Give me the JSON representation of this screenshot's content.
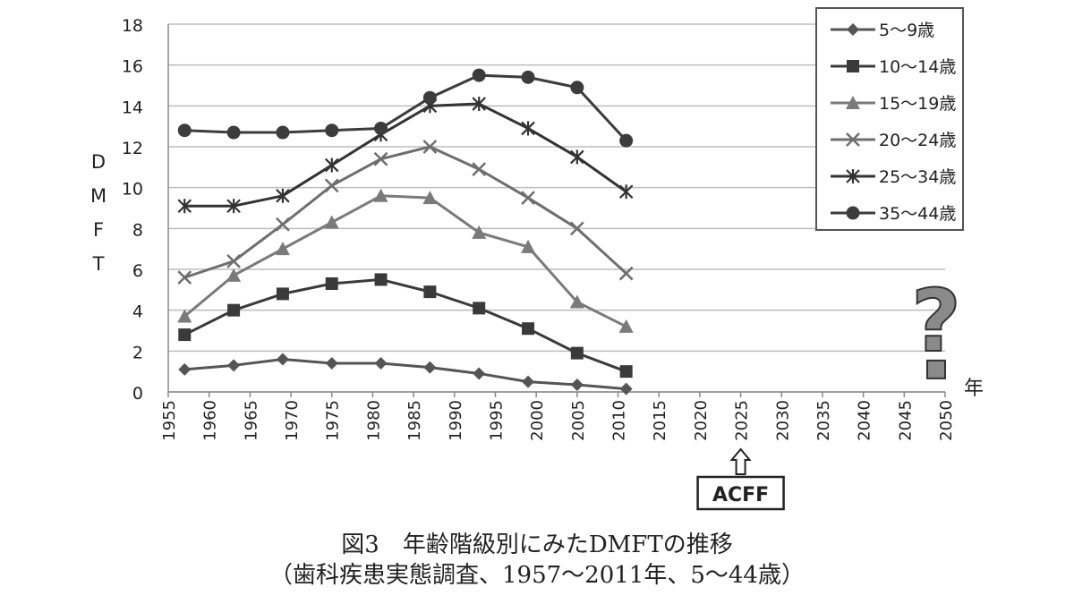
{
  "chart_data": {
    "type": "line",
    "ylabel": "DMFT",
    "xlabel": "年",
    "ylim": [
      0,
      18
    ],
    "xlim": [
      1955,
      2050
    ],
    "yticks": [
      0,
      2,
      4,
      6,
      8,
      10,
      12,
      14,
      16,
      18
    ],
    "xticks": [
      1955,
      1960,
      1965,
      1970,
      1975,
      1980,
      1985,
      1990,
      1995,
      2000,
      2005,
      2010,
      2015,
      2020,
      2025,
      2030,
      2035,
      2040,
      2045,
      2050
    ],
    "grid": true,
    "legend_position": "top-right",
    "x": [
      1957,
      1963,
      1969,
      1975,
      1981,
      1987,
      1993,
      1999,
      2005,
      2011
    ],
    "series": [
      {
        "name": "5～9歳",
        "marker": "diamond",
        "color": "#555555",
        "values": [
          1.1,
          1.3,
          1.6,
          1.4,
          1.4,
          1.2,
          0.9,
          0.5,
          0.35,
          0.15
        ]
      },
      {
        "name": "10～14歳",
        "marker": "square",
        "color": "#3a3a3a",
        "values": [
          2.8,
          4.0,
          4.8,
          5.3,
          5.5,
          4.9,
          4.1,
          3.1,
          1.9,
          1.0
        ]
      },
      {
        "name": "15～19歳",
        "marker": "triangle",
        "color": "#7a7a7a",
        "values": [
          3.7,
          5.7,
          7.0,
          8.3,
          9.6,
          9.5,
          7.8,
          7.1,
          4.4,
          3.2
        ]
      },
      {
        "name": "20～24歳",
        "marker": "x",
        "color": "#6e6e6e",
        "values": [
          5.6,
          6.4,
          8.2,
          10.1,
          11.4,
          12.0,
          10.9,
          9.5,
          8.0,
          5.8
        ]
      },
      {
        "name": "25～34歳",
        "marker": "star",
        "color": "#333333",
        "values": [
          9.1,
          9.1,
          9.6,
          11.1,
          12.6,
          14.0,
          14.1,
          12.9,
          11.5,
          9.8
        ]
      },
      {
        "name": "35～44歳",
        "marker": "circle",
        "color": "#3c3c3c",
        "values": [
          12.8,
          12.7,
          12.7,
          12.8,
          12.9,
          14.4,
          15.5,
          15.4,
          14.9,
          12.3
        ]
      }
    ],
    "annotations": {
      "acff_label": "ACFF",
      "acff_year": 2025,
      "question_mark": "?",
      "question_year": 2050,
      "question_value": 1.1
    }
  },
  "caption": {
    "line1": "図3　年齢階級別にみたDMFTの推移",
    "line2": "（歯科疾患実態調査、1957～2011年、5～44歳）"
  }
}
